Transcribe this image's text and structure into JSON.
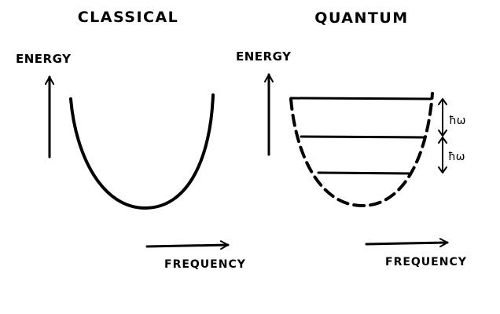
{
  "panels": {
    "classical": {
      "title": "CLASSICAL",
      "y_axis_label": "ENERGY",
      "x_axis_label": "FREQUENCY"
    },
    "quantum": {
      "title": "QUANTUM",
      "y_axis_label": "ENERGY",
      "x_axis_label": "FREQUENCY",
      "level_spacing_labels": [
        "ħω",
        "ħω"
      ]
    }
  },
  "colors": {
    "ink": "#000000",
    "background": "#ffffff"
  }
}
